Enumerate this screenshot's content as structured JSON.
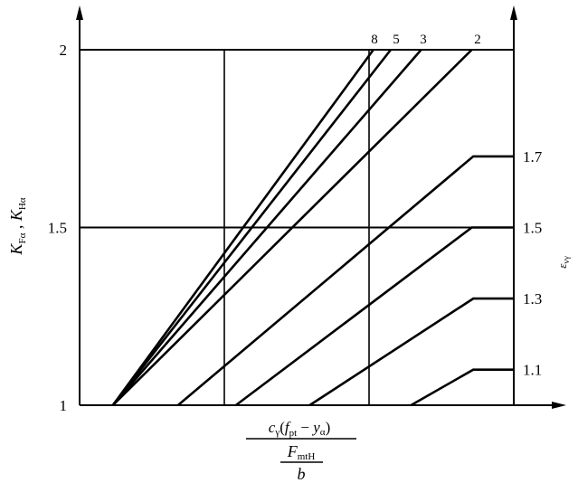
{
  "chart_data": {
    "type": "line",
    "title": "",
    "ylabel": "K_Fα , K_Hα",
    "ylabel_parts": {
      "k1": "K",
      "s1": "Fα",
      "sep": " , ",
      "k2": "K",
      "s2": "Hα"
    },
    "xlabel_parts": {
      "num_c": "c",
      "num_c_sub": "γ",
      "num_open": "(",
      "num_f": "f",
      "num_f_sub": "pt",
      "num_minus": " − ",
      "num_y": "y",
      "num_y_sub": "α",
      "num_close": ")",
      "den_F": "F",
      "den_F_sub": "mtH",
      "den_b": "b"
    },
    "right_axis_label": "ε_vγ",
    "right_axis_label_parts": {
      "main": "ε",
      "sub": "vγ"
    },
    "ylim": [
      1,
      2
    ],
    "xlim": [
      0,
      3
    ],
    "x_ticks_printed": false,
    "y_ticks": [
      "1",
      "1.5",
      "2"
    ],
    "y_tick_values": [
      1,
      1.5,
      2
    ],
    "grid": {
      "x_lines": [
        1,
        2
      ],
      "y_lines": [
        1.5,
        2
      ]
    },
    "top_curve_labels": [
      "8",
      "5",
      "3",
      "2"
    ],
    "right_curve_labels": [
      "1.7",
      "1.5",
      "1.3",
      "1.1"
    ],
    "series": [
      {
        "name": "8",
        "points": [
          [
            0.23,
            1
          ],
          [
            2.03,
            2
          ]
        ]
      },
      {
        "name": "5",
        "points": [
          [
            0.23,
            1
          ],
          [
            2.15,
            2
          ]
        ]
      },
      {
        "name": "3",
        "points": [
          [
            0.23,
            1
          ],
          [
            2.36,
            2
          ]
        ]
      },
      {
        "name": "2",
        "points": [
          [
            0.23,
            1
          ],
          [
            2.71,
            2
          ]
        ]
      },
      {
        "name": "1.7",
        "points": [
          [
            0.68,
            1
          ],
          [
            2.72,
            1.7
          ],
          [
            3,
            1.7
          ]
        ]
      },
      {
        "name": "1.5",
        "points": [
          [
            1.08,
            1
          ],
          [
            2.71,
            1.5
          ],
          [
            3,
            1.5
          ]
        ]
      },
      {
        "name": "1.3",
        "points": [
          [
            1.59,
            1
          ],
          [
            2.72,
            1.3
          ],
          [
            3,
            1.3
          ]
        ]
      },
      {
        "name": "1.1",
        "points": [
          [
            2.29,
            1
          ],
          [
            2.72,
            1.1
          ],
          [
            3,
            1.1
          ]
        ]
      }
    ],
    "color": "#000000"
  }
}
